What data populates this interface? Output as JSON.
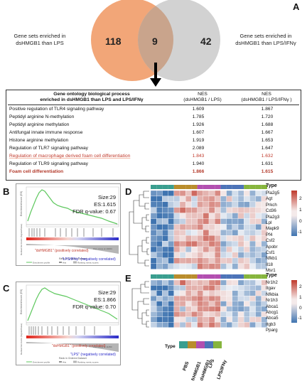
{
  "panels": {
    "A": "A",
    "B": "B",
    "C": "C",
    "D": "D",
    "E": "E"
  },
  "venn": {
    "left_label_line1": "Gene sets enriched in",
    "left_label_line2": "dsHMGB1 than LPS",
    "right_label_line1": "Gene sets enriched in",
    "right_label_line2": "dsHMGB1 than LPS/IFNγ",
    "left_only": "118",
    "overlap": "9",
    "right_only": "42",
    "left_color": "#f2a678",
    "right_color": "#cfcfcf",
    "overlap_color": "#caa38a"
  },
  "table": {
    "header_term_line1": "Gene ontology biological process",
    "header_term_line2": "enriched in dsHMGB1 than LPS and LPS/IFNγ",
    "header_nes1_line1": "NES",
    "header_nes1_line2": "(dsHMGB1 / LPS)",
    "header_nes2_line1": "NES",
    "header_nes2_line2": "(dsHMGB1 / LPS/IFNγ )",
    "rows": [
      {
        "term": "Positive regulation of TLR4 signaling pathway",
        "nes_lps": "1.609",
        "nes_lps_ifn": "1.867"
      },
      {
        "term": "Peptidyl arginine N-methylation",
        "nes_lps": "1.785",
        "nes_lps_ifn": "1.720"
      },
      {
        "term": "Peptidyl arginine methylation",
        "nes_lps": "1.926",
        "nes_lps_ifn": "1.688"
      },
      {
        "term": "Antifungal innate immune response",
        "nes_lps": "1.607",
        "nes_lps_ifn": "1.667"
      },
      {
        "term": "Histone arginine methylation",
        "nes_lps": "1.919",
        "nes_lps_ifn": "1.653"
      },
      {
        "term": "Regulation of TLR7 signaling pathway",
        "nes_lps": "2.089",
        "nes_lps_ifn": "1.647"
      },
      {
        "term": "Regulation of macrophage derived foam cell differentiation",
        "nes_lps": "1.843",
        "nes_lps_ifn": "1.632"
      },
      {
        "term": "Regulation of  TLR9 signaling pathway",
        "nes_lps": "1.940",
        "nes_lps_ifn": "1.631"
      },
      {
        "term": "Foam cell differentiation",
        "nes_lps": "1.866",
        "nes_lps_ifn": "1.615"
      }
    ]
  },
  "gsea_b": {
    "size": "Size:29",
    "es": "ES:1.615",
    "fdr": "FDR q-value: 0.67",
    "pos_label": "\"dsHMGB1\" (positively correlated)",
    "neg_label": "\"LPS/IFNγ\" (negatively correlated)",
    "x_label": "Rank in Ordered Dataset",
    "y_label_top": "Enrichment score (ES)",
    "y_label_bottom": "Ranked list metric (Signal2Noise)",
    "zero_cross": "Zero cross at 10464",
    "legend": [
      "Enrichment profile",
      "Hits",
      "Ranking metric scores"
    ]
  },
  "gsea_c": {
    "size": "Size:29",
    "es": "ES:1.866",
    "fdr": "FDR q-value: 0.70",
    "pos_label": "\"dsHMGB1\" (positively correlated)",
    "neg_label": "\"LPS\" (negatively correlated)",
    "x_label": "Rank in Ordered Dataset",
    "y_label_top": "Enrichment score (ES)",
    "y_label_bottom": "Ranked list metric (Signal2Noise)",
    "zero_cross": "Zero cross at 11250",
    "legend": [
      "Enrichment profile",
      "Hits",
      "Ranking metric scores"
    ]
  },
  "heatmap_d": {
    "type_label": "Type",
    "genes": [
      "Pla2g5",
      "Agt",
      "Prkch",
      "Cd36",
      "Pla2g3",
      "Lpl",
      "Mapk9",
      "Pf4",
      "Csf2",
      "Apobr",
      "Csf1",
      "Nfkb1",
      "Il18",
      "Msr1"
    ],
    "legend_ticks": [
      "2",
      "1",
      "0",
      "-1"
    ]
  },
  "heatmap_e": {
    "type_label": "Type",
    "genes": [
      "Nr1h2",
      "Itgav",
      "Nfkbia",
      "Nr1h3",
      "Abca1",
      "Abcg1",
      "Abca5",
      "Itgb3",
      "Pparg"
    ],
    "legend_ticks": [
      "2",
      "1",
      "0",
      "-1"
    ]
  },
  "type_legend": {
    "title": "Type",
    "groups": [
      {
        "name": "PBS",
        "color": "#3a9e8f"
      },
      {
        "name": "frHMGB1",
        "color": "#b98d2c"
      },
      {
        "name": "dsHMGB1",
        "color": "#b24fb0"
      },
      {
        "name": "LPS",
        "color": "#4d74b8"
      },
      {
        "name": "LPS/IFNγ",
        "color": "#86b53d"
      }
    ]
  }
}
